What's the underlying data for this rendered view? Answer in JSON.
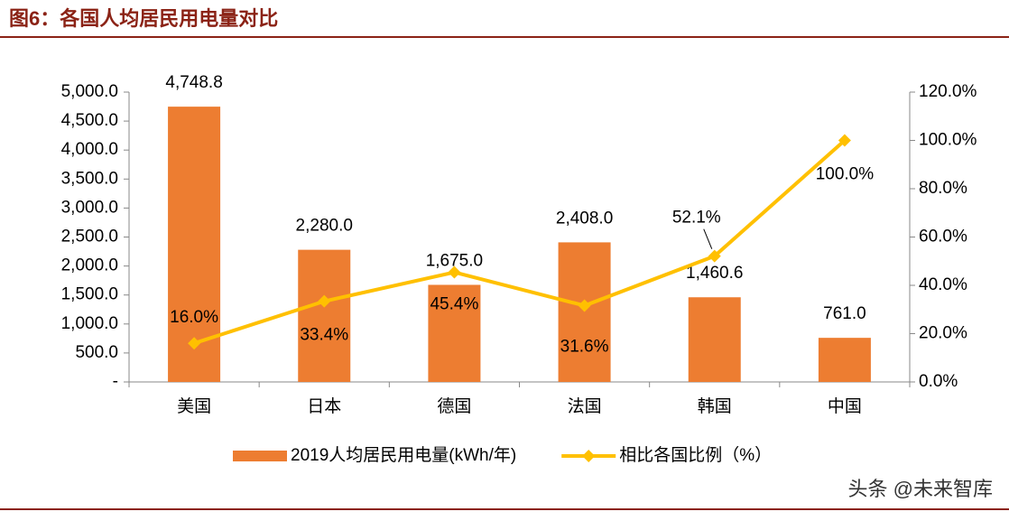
{
  "chart_data": {
    "type": "bar",
    "title": "图6：各国人均居民用电量对比",
    "categories": [
      "美国",
      "日本",
      "德国",
      "法国",
      "韩国",
      "中国"
    ],
    "series": [
      {
        "name": "2019人均居民用电量(kWh/年)",
        "type": "bar",
        "color": "#ED7D31",
        "values": [
          4748.8,
          2280.0,
          1675.0,
          2408.0,
          1460.6,
          761.0
        ],
        "value_labels": [
          "4,748.8",
          "2,280.0",
          "1,675.0",
          "2,408.0",
          "1,460.6",
          "761.0"
        ]
      },
      {
        "name": "相比各国比例（%）",
        "type": "line",
        "axis": "y2",
        "color": "#FFC000",
        "values": [
          16.0,
          33.4,
          45.4,
          31.6,
          52.1,
          100.0
        ],
        "value_labels": [
          "16.0%",
          "33.4%",
          "45.4%",
          "31.6%",
          "52.1%",
          "100.0%"
        ]
      }
    ],
    "ylim": [
      0,
      5000
    ],
    "yticks": [
      {
        "value": 0,
        "label": "-"
      },
      {
        "value": 500,
        "label": "500.0"
      },
      {
        "value": 1000,
        "label": "1,000.0"
      },
      {
        "value": 1500,
        "label": "1,500.0"
      },
      {
        "value": 2000,
        "label": "2,000.0"
      },
      {
        "value": 2500,
        "label": "2,500.0"
      },
      {
        "value": 3000,
        "label": "3,000.0"
      },
      {
        "value": 3500,
        "label": "3,500.0"
      },
      {
        "value": 4000,
        "label": "4,000.0"
      },
      {
        "value": 4500,
        "label": "4,500.0"
      },
      {
        "value": 5000,
        "label": "5,000.0"
      }
    ],
    "y2lim": [
      0,
      120
    ],
    "y2ticks": [
      {
        "value": 0,
        "label": "0.0%"
      },
      {
        "value": 20,
        "label": "20.0%"
      },
      {
        "value": 40,
        "label": "40.0%"
      },
      {
        "value": 60,
        "label": "60.0%"
      },
      {
        "value": 80,
        "label": "80.0%"
      },
      {
        "value": 100,
        "label": "100.0%"
      },
      {
        "value": 120,
        "label": "120.0%"
      }
    ],
    "grid": false,
    "legend": "bottom",
    "watermark": "头条 @未来智库"
  }
}
